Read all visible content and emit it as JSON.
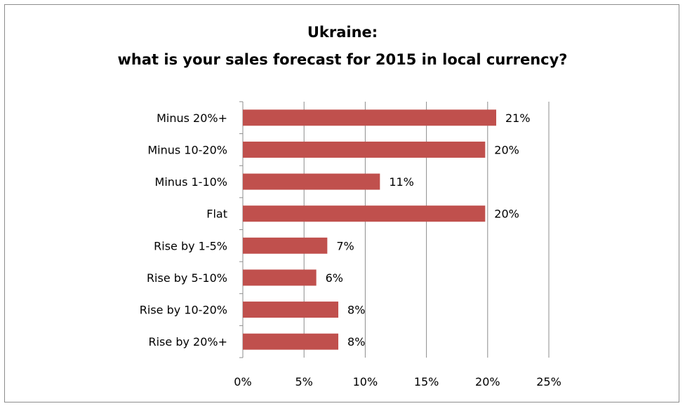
{
  "chart_data": {
    "type": "bar",
    "orientation": "horizontal",
    "title_lines": [
      "Ukraine:",
      "what is your sales forecast for 2015 in local currency?"
    ],
    "categories": [
      "Minus 20%+",
      "Minus 10-20%",
      "Minus 1-10%",
      "Flat",
      "Rise by 1-5%",
      "Rise by 5-10%",
      "Rise by 10-20%",
      "Rise by 20%+"
    ],
    "values": [
      20.7,
      19.8,
      11.2,
      19.8,
      6.9,
      6.0,
      7.8,
      7.8
    ],
    "data_labels": [
      "21%",
      "20%",
      "11%",
      "20%",
      "7%",
      "6%",
      "8%",
      "8%"
    ],
    "xlim": [
      0,
      25
    ],
    "x_ticks": [
      0,
      5,
      10,
      15,
      20,
      25
    ],
    "x_tick_labels": [
      "0%",
      "5%",
      "10%",
      "15%",
      "20%",
      "25%"
    ],
    "bar_color": "#c0504d",
    "grid": true,
    "legend": "none"
  }
}
